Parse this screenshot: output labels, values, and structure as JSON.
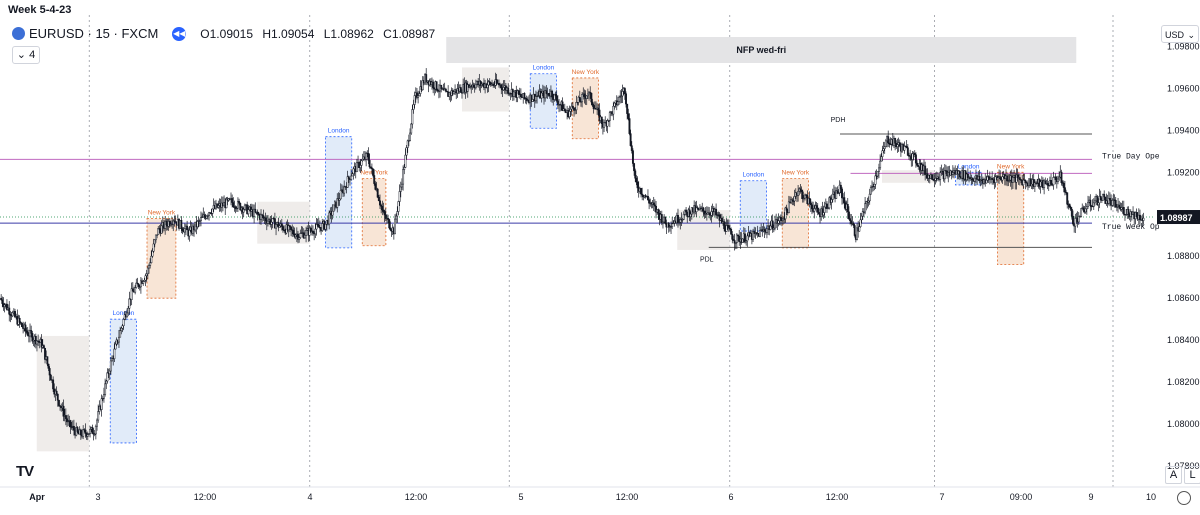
{
  "header": {
    "week_label": "Week 5-4-23",
    "symbol": "EURUSD · 15 · FXCM",
    "ohlc": {
      "open": "O1.09015",
      "high": "H1.09054",
      "low": "L1.08962",
      "close": "C1.08987"
    },
    "indicator_count": "4",
    "currency": "USD"
  },
  "buttons": {
    "auto": "A",
    "log": "L"
  },
  "colors": {
    "bg": "#ffffff",
    "candle": "#131722",
    "london_fill": "#dce8f8",
    "london_border": "#2962ff",
    "newyork_fill": "#f7e0cf",
    "newyork_border": "#e06a2c",
    "asia_fill": "#ece9e6",
    "nfp_fill": "#e4e4e6",
    "true_day_line": "#c06ac0",
    "true_week_line": "#3a3aa8",
    "last_price_line": "#1a8a4a"
  },
  "chart_data": {
    "type": "candlestick",
    "symbol": "EURUSD",
    "timeframe": "15",
    "ylim": [
      1.077,
      1.0995
    ],
    "y_ticks": [
      1.078,
      1.08,
      1.082,
      1.084,
      1.086,
      1.088,
      1.09,
      1.092,
      1.094,
      1.096,
      1.098
    ],
    "x_tick_labels": [
      "Apr",
      "3",
      "12:00",
      "4",
      "12:00",
      "5",
      "12:00",
      "6",
      "12:00",
      "7",
      "09:00",
      "9",
      "10"
    ],
    "grid": "vertical day separators (dotted)",
    "last_price": 1.08987,
    "last_price_label": "1.08987",
    "price_path": [
      {
        "t": 0.0,
        "p": 1.086
      },
      {
        "t": 0.5,
        "p": 1.0844
      },
      {
        "t": 0.8,
        "p": 1.0838
      },
      {
        "t": 1.05,
        "p": 1.0815
      },
      {
        "t": 1.3,
        "p": 1.08
      },
      {
        "t": 1.5,
        "p": 1.0795
      },
      {
        "t": 1.8,
        "p": 1.0797
      },
      {
        "t": 2.1,
        "p": 1.0828
      },
      {
        "t": 2.5,
        "p": 1.0862
      },
      {
        "t": 2.8,
        "p": 1.0872
      },
      {
        "t": 3.0,
        "p": 1.0892
      },
      {
        "t": 3.3,
        "p": 1.0898
      },
      {
        "t": 3.6,
        "p": 1.0891
      },
      {
        "t": 4.0,
        "p": 1.0902
      },
      {
        "t": 4.4,
        "p": 1.0906
      },
      {
        "t": 4.8,
        "p": 1.0901
      },
      {
        "t": 5.2,
        "p": 1.0896
      },
      {
        "t": 5.7,
        "p": 1.089
      },
      {
        "t": 6.2,
        "p": 1.0895
      },
      {
        "t": 6.7,
        "p": 1.092
      },
      {
        "t": 7.0,
        "p": 1.0928
      },
      {
        "t": 7.3,
        "p": 1.09
      },
      {
        "t": 7.5,
        "p": 1.0892
      },
      {
        "t": 7.9,
        "p": 1.0955
      },
      {
        "t": 8.1,
        "p": 1.0965
      },
      {
        "t": 8.5,
        "p": 1.0957
      },
      {
        "t": 9.0,
        "p": 1.0962
      },
      {
        "t": 9.5,
        "p": 1.0962
      },
      {
        "t": 10.0,
        "p": 1.0955
      },
      {
        "t": 10.5,
        "p": 1.0958
      },
      {
        "t": 10.8,
        "p": 1.0948
      },
      {
        "t": 11.2,
        "p": 1.0958
      },
      {
        "t": 11.5,
        "p": 1.0942
      },
      {
        "t": 11.9,
        "p": 1.096
      },
      {
        "t": 12.1,
        "p": 1.0915
      },
      {
        "t": 12.4,
        "p": 1.0905
      },
      {
        "t": 12.7,
        "p": 1.0895
      },
      {
        "t": 13.2,
        "p": 1.0902
      },
      {
        "t": 13.6,
        "p": 1.0901
      },
      {
        "t": 14.0,
        "p": 1.0888
      },
      {
        "t": 14.4,
        "p": 1.089
      },
      {
        "t": 14.9,
        "p": 1.0898
      },
      {
        "t": 15.2,
        "p": 1.0912
      },
      {
        "t": 15.6,
        "p": 1.09
      },
      {
        "t": 16.0,
        "p": 1.0912
      },
      {
        "t": 16.3,
        "p": 1.089
      },
      {
        "t": 16.6,
        "p": 1.0912
      },
      {
        "t": 16.9,
        "p": 1.0936
      },
      {
        "t": 17.3,
        "p": 1.093
      },
      {
        "t": 17.7,
        "p": 1.0918
      },
      {
        "t": 18.2,
        "p": 1.092
      },
      {
        "t": 18.7,
        "p": 1.0916
      },
      {
        "t": 19.1,
        "p": 1.0918
      },
      {
        "t": 19.5,
        "p": 1.0916
      },
      {
        "t": 19.9,
        "p": 1.0914
      },
      {
        "t": 20.2,
        "p": 1.0918
      },
      {
        "t": 20.45,
        "p": 1.0896
      },
      {
        "t": 20.7,
        "p": 1.0904
      },
      {
        "t": 21.0,
        "p": 1.0908
      },
      {
        "t": 21.4,
        "p": 1.0902
      },
      {
        "t": 21.8,
        "p": 1.0898
      }
    ],
    "session_boxes": [
      {
        "kind": "asia",
        "label": "",
        "t0": 0.7,
        "t1": 1.7,
        "low": 1.0787,
        "high": 1.0842
      },
      {
        "kind": "london",
        "label": "London",
        "t0": 2.1,
        "t1": 2.6,
        "low": 1.0791,
        "high": 1.085
      },
      {
        "kind": "newyork",
        "label": "New York",
        "t0": 2.8,
        "t1": 3.35,
        "low": 1.086,
        "high": 1.0898
      },
      {
        "kind": "asia",
        "label": "",
        "t0": 4.9,
        "t1": 5.9,
        "low": 1.0886,
        "high": 1.0906
      },
      {
        "kind": "london",
        "label": "London",
        "t0": 6.2,
        "t1": 6.7,
        "low": 1.0884,
        "high": 1.0937
      },
      {
        "kind": "newyork",
        "label": "New York",
        "t0": 6.9,
        "t1": 7.35,
        "low": 1.0885,
        "high": 1.0917
      },
      {
        "kind": "asia",
        "label": "",
        "t0": 8.8,
        "t1": 9.7,
        "low": 1.0949,
        "high": 1.097
      },
      {
        "kind": "london",
        "label": "London",
        "t0": 10.1,
        "t1": 10.6,
        "low": 1.0941,
        "high": 1.0967
      },
      {
        "kind": "newyork",
        "label": "New York",
        "t0": 10.9,
        "t1": 11.4,
        "low": 1.0936,
        "high": 1.0965
      },
      {
        "kind": "asia",
        "label": "",
        "t0": 12.9,
        "t1": 13.9,
        "low": 1.0883,
        "high": 1.0902
      },
      {
        "kind": "london",
        "label": "London",
        "t0": 14.1,
        "t1": 14.6,
        "low": 1.0892,
        "high": 1.0916
      },
      {
        "kind": "newyork",
        "label": "New York",
        "t0": 14.9,
        "t1": 15.4,
        "low": 1.0884,
        "high": 1.0917
      },
      {
        "kind": "asia",
        "label": "",
        "t0": 16.8,
        "t1": 17.8,
        "low": 1.0915,
        "high": 1.0921
      },
      {
        "kind": "london",
        "label": "London",
        "t0": 18.2,
        "t1": 18.7,
        "low": 1.0914,
        "high": 1.092
      },
      {
        "kind": "newyork",
        "label": "New York",
        "t0": 19.0,
        "t1": 19.5,
        "low": 1.0876,
        "high": 1.092
      }
    ],
    "nfp_band": {
      "label": "NFP wed-fri",
      "t0": 8.5,
      "t1": 20.5
    },
    "levels": [
      {
        "name": "true_day_open",
        "label": "True Day Ope",
        "price": 1.09262,
        "t0": 0.0,
        "t1": 20.8,
        "color": "#c06ac0"
      },
      {
        "name": "true_week_open",
        "label": "True Week Op",
        "price": 1.08958,
        "t0": 0.0,
        "t1": 20.8,
        "color": "#3a3aa8"
      },
      {
        "name": "true_day_open_ext",
        "label": "",
        "price": 1.09195,
        "t0": 16.2,
        "t1": 20.8,
        "color": "#c06ac0"
      },
      {
        "name": "pdh",
        "label": "PDH",
        "price": 1.09383,
        "t0": 16.0,
        "t1": 20.8,
        "color": "#555555"
      },
      {
        "name": "pdl",
        "label": "PDL",
        "price": 1.08842,
        "t0": 13.5,
        "t1": 20.8,
        "color": "#555555"
      }
    ]
  }
}
